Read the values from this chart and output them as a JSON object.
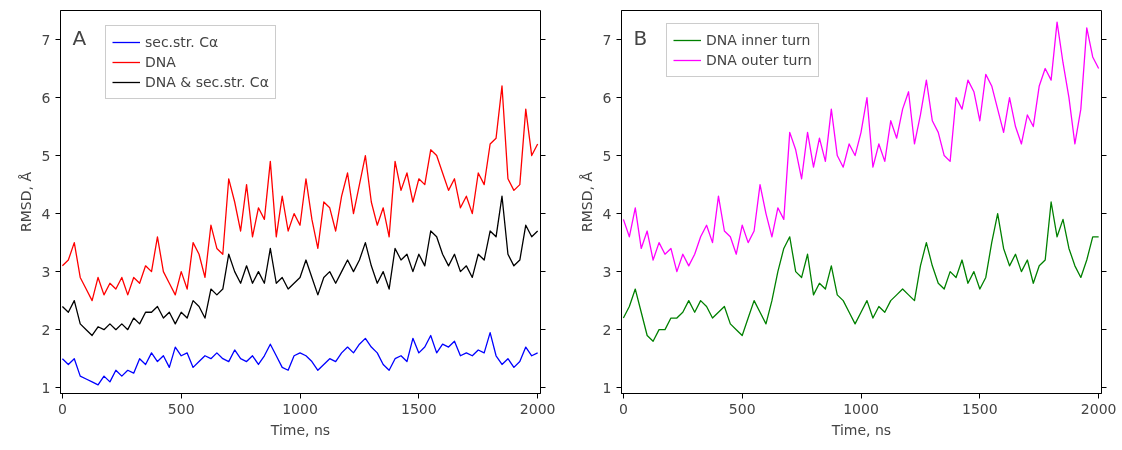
{
  "chart_data": [
    {
      "type": "line",
      "xlabel": "Time, ns",
      "ylabel": "RMSD, Å",
      "annotations": [
        "A"
      ],
      "xlim": [
        -8,
        2012
      ],
      "ylim": [
        0.9,
        7.5
      ],
      "xticks": [
        0,
        500,
        1000,
        1500,
        2000
      ],
      "yticks": [
        1,
        2,
        3,
        4,
        5,
        6,
        7
      ],
      "grid": false,
      "legend": "top left",
      "line_style": "solid",
      "marker": "none",
      "x": [
        0,
        25,
        50,
        75,
        100,
        125,
        150,
        175,
        200,
        225,
        250,
        275,
        300,
        325,
        350,
        375,
        400,
        425,
        450,
        475,
        500,
        525,
        550,
        575,
        600,
        625,
        650,
        675,
        700,
        725,
        750,
        775,
        800,
        825,
        850,
        875,
        900,
        925,
        950,
        975,
        1000,
        1025,
        1050,
        1075,
        1100,
        1125,
        1150,
        1175,
        1200,
        1225,
        1250,
        1275,
        1300,
        1325,
        1350,
        1375,
        1400,
        1425,
        1450,
        1475,
        1500,
        1525,
        1550,
        1575,
        1600,
        1625,
        1650,
        1675,
        1700,
        1725,
        1750,
        1775,
        1800,
        1825,
        1850,
        1875,
        1900,
        1925,
        1950,
        1975,
        2000
      ],
      "series": [
        {
          "name": "sec.str. Cα",
          "color": "#0000ff",
          "values": [
            1.5,
            1.4,
            1.5,
            1.2,
            1.15,
            1.1,
            1.05,
            1.2,
            1.1,
            1.3,
            1.2,
            1.3,
            1.25,
            1.5,
            1.4,
            1.6,
            1.45,
            1.55,
            1.35,
            1.7,
            1.55,
            1.6,
            1.35,
            1.45,
            1.55,
            1.5,
            1.6,
            1.5,
            1.45,
            1.65,
            1.5,
            1.45,
            1.55,
            1.4,
            1.55,
            1.75,
            1.55,
            1.35,
            1.3,
            1.55,
            1.6,
            1.55,
            1.45,
            1.3,
            1.4,
            1.5,
            1.45,
            1.6,
            1.7,
            1.6,
            1.75,
            1.85,
            1.7,
            1.6,
            1.4,
            1.3,
            1.5,
            1.55,
            1.45,
            1.85,
            1.6,
            1.7,
            1.9,
            1.6,
            1.75,
            1.7,
            1.8,
            1.55,
            1.6,
            1.55,
            1.65,
            1.6,
            1.95,
            1.55,
            1.4,
            1.5,
            1.35,
            1.45,
            1.7,
            1.55,
            1.6
          ]
        },
        {
          "name": "DNA",
          "color": "#ff0000",
          "values": [
            3.1,
            3.2,
            3.5,
            2.9,
            2.7,
            2.5,
            2.9,
            2.6,
            2.8,
            2.7,
            2.9,
            2.6,
            2.9,
            2.8,
            3.1,
            3.0,
            3.6,
            3.0,
            2.8,
            2.6,
            3.0,
            2.7,
            3.5,
            3.3,
            2.9,
            3.8,
            3.4,
            3.3,
            4.6,
            4.2,
            3.7,
            4.5,
            3.6,
            4.1,
            3.9,
            4.9,
            3.6,
            4.3,
            3.7,
            4.0,
            3.8,
            4.6,
            3.9,
            3.4,
            4.2,
            4.1,
            3.7,
            4.3,
            4.7,
            4.0,
            4.5,
            5.0,
            4.2,
            3.8,
            4.1,
            3.6,
            4.9,
            4.4,
            4.7,
            4.2,
            4.6,
            4.5,
            5.1,
            5.0,
            4.7,
            4.4,
            4.6,
            4.1,
            4.3,
            4.0,
            4.7,
            4.5,
            5.2,
            5.3,
            6.2,
            4.6,
            4.4,
            4.5,
            5.8,
            5.0,
            5.2
          ]
        },
        {
          "name": "DNA & sec.str. Cα",
          "color": "#000000",
          "values": [
            2.4,
            2.3,
            2.5,
            2.1,
            2.0,
            1.9,
            2.05,
            2.0,
            2.1,
            2.0,
            2.1,
            2.0,
            2.2,
            2.1,
            2.3,
            2.3,
            2.4,
            2.2,
            2.3,
            2.1,
            2.3,
            2.2,
            2.5,
            2.4,
            2.2,
            2.7,
            2.6,
            2.7,
            3.3,
            3.0,
            2.8,
            3.1,
            2.8,
            3.0,
            2.8,
            3.4,
            2.8,
            2.9,
            2.7,
            2.8,
            2.9,
            3.2,
            2.9,
            2.6,
            2.9,
            3.0,
            2.8,
            3.0,
            3.2,
            3.0,
            3.2,
            3.5,
            3.1,
            2.8,
            3.0,
            2.7,
            3.4,
            3.2,
            3.3,
            3.0,
            3.3,
            3.1,
            3.7,
            3.6,
            3.3,
            3.1,
            3.3,
            3.0,
            3.1,
            2.9,
            3.3,
            3.2,
            3.7,
            3.6,
            4.3,
            3.3,
            3.1,
            3.2,
            3.8,
            3.6,
            3.7
          ]
        }
      ]
    },
    {
      "type": "line",
      "xlabel": "Time, ns",
      "ylabel": "RMSD, Å",
      "annotations": [
        "B"
      ],
      "xlim": [
        -8,
        2012
      ],
      "ylim": [
        0.9,
        7.5
      ],
      "xticks": [
        0,
        500,
        1000,
        1500,
        2000
      ],
      "yticks": [
        1,
        2,
        3,
        4,
        5,
        6,
        7
      ],
      "grid": false,
      "legend": "top left",
      "line_style": "solid",
      "marker": "none",
      "x": [
        0,
        25,
        50,
        75,
        100,
        125,
        150,
        175,
        200,
        225,
        250,
        275,
        300,
        325,
        350,
        375,
        400,
        425,
        450,
        475,
        500,
        525,
        550,
        575,
        600,
        625,
        650,
        675,
        700,
        725,
        750,
        775,
        800,
        825,
        850,
        875,
        900,
        925,
        950,
        975,
        1000,
        1025,
        1050,
        1075,
        1100,
        1125,
        1150,
        1175,
        1200,
        1225,
        1250,
        1275,
        1300,
        1325,
        1350,
        1375,
        1400,
        1425,
        1450,
        1475,
        1500,
        1525,
        1550,
        1575,
        1600,
        1625,
        1650,
        1675,
        1700,
        1725,
        1750,
        1775,
        1800,
        1825,
        1850,
        1875,
        1900,
        1925,
        1950,
        1975,
        2000
      ],
      "series": [
        {
          "name": "DNA inner turn",
          "color": "#008000",
          "values": [
            2.2,
            2.4,
            2.7,
            2.3,
            1.9,
            1.8,
            2.0,
            2.0,
            2.2,
            2.2,
            2.3,
            2.5,
            2.3,
            2.5,
            2.4,
            2.2,
            2.3,
            2.4,
            2.1,
            2.0,
            1.9,
            2.2,
            2.5,
            2.3,
            2.1,
            2.5,
            3.0,
            3.4,
            3.6,
            3.0,
            2.9,
            3.3,
            2.6,
            2.8,
            2.7,
            3.1,
            2.6,
            2.5,
            2.3,
            2.1,
            2.3,
            2.5,
            2.2,
            2.4,
            2.3,
            2.5,
            2.6,
            2.7,
            2.6,
            2.5,
            3.1,
            3.5,
            3.1,
            2.8,
            2.7,
            3.0,
            2.9,
            3.2,
            2.8,
            3.0,
            2.7,
            2.9,
            3.5,
            4.0,
            3.4,
            3.1,
            3.3,
            3.0,
            3.2,
            2.8,
            3.1,
            3.2,
            4.2,
            3.6,
            3.9,
            3.4,
            3.1,
            2.9,
            3.2,
            3.6,
            3.6
          ]
        },
        {
          "name": "DNA outer turn",
          "color": "#ff00ff",
          "values": [
            3.9,
            3.6,
            4.1,
            3.4,
            3.7,
            3.2,
            3.5,
            3.3,
            3.4,
            3.0,
            3.3,
            3.1,
            3.3,
            3.6,
            3.8,
            3.5,
            4.3,
            3.7,
            3.6,
            3.3,
            3.8,
            3.5,
            3.7,
            4.5,
            4.0,
            3.6,
            4.1,
            3.9,
            5.4,
            5.1,
            4.6,
            5.4,
            4.8,
            5.3,
            4.9,
            5.8,
            5.0,
            4.8,
            5.2,
            5.0,
            5.4,
            6.0,
            4.8,
            5.2,
            4.9,
            5.6,
            5.3,
            5.8,
            6.1,
            5.2,
            5.7,
            6.3,
            5.6,
            5.4,
            5.0,
            4.9,
            6.0,
            5.8,
            6.3,
            6.1,
            5.6,
            6.4,
            6.2,
            5.8,
            5.4,
            6.0,
            5.5,
            5.2,
            5.7,
            5.5,
            6.2,
            6.5,
            6.3,
            7.3,
            6.6,
            6.0,
            5.2,
            5.8,
            7.2,
            6.7,
            6.5
          ]
        }
      ]
    }
  ]
}
